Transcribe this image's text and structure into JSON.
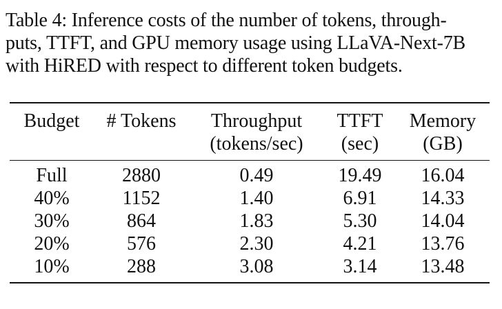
{
  "caption": {
    "lines": [
      "Table 4: Inference costs of the number of tokens, through-",
      "puts, TTFT, and GPU memory usage using LLaVA-Next-7B",
      "with HiRED with respect to different token budgets."
    ]
  },
  "table": {
    "headers": [
      {
        "line1": "Budget",
        "line2": ""
      },
      {
        "line1": "# Tokens",
        "line2": ""
      },
      {
        "line1": "Throughput",
        "line2": "(tokens/sec)"
      },
      {
        "line1": "TTFT",
        "line2": "(sec)"
      },
      {
        "line1": "Memory",
        "line2": "(GB)"
      }
    ],
    "rows": [
      [
        "Full",
        "2880",
        "0.49",
        "19.49",
        "16.04"
      ],
      [
        "40%",
        "1152",
        "1.40",
        "6.91",
        "14.33"
      ],
      [
        "30%",
        "864",
        "1.83",
        "5.30",
        "14.04"
      ],
      [
        "20%",
        "576",
        "2.30",
        "4.21",
        "13.76"
      ],
      [
        "10%",
        "288",
        "3.08",
        "3.14",
        "13.48"
      ]
    ]
  }
}
